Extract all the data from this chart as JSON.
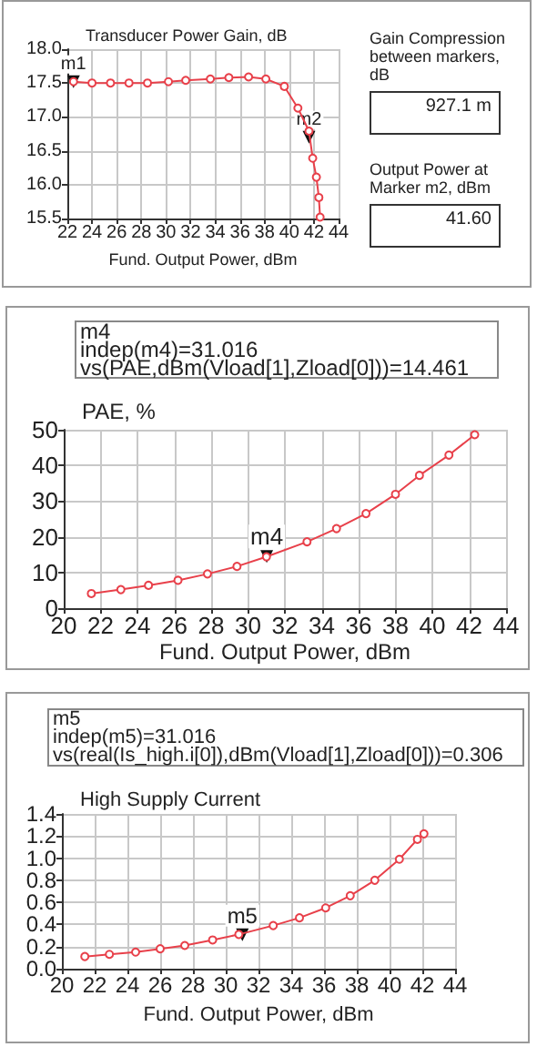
{
  "chart_data": [
    {
      "type": "line",
      "title": "Transducer Power Gain, dB",
      "xlabel": "Fund. Output Power, dBm",
      "color": "#e8404a",
      "marker": "circle",
      "grid": true,
      "x": [
        22.5,
        24.0,
        25.5,
        27.0,
        28.5,
        30.2,
        31.6,
        33.6,
        35.1,
        36.7,
        38.1,
        39.6,
        40.7,
        41.6,
        41.9,
        42.2,
        42.4,
        42.5
      ],
      "values": [
        17.52,
        17.5,
        17.5,
        17.5,
        17.5,
        17.52,
        17.54,
        17.56,
        17.58,
        17.59,
        17.56,
        17.45,
        17.13,
        16.79,
        16.39,
        16.11,
        15.81,
        15.52
      ],
      "xlim": [
        22,
        44
      ],
      "xticks": [
        22,
        24,
        26,
        28,
        30,
        32,
        34,
        36,
        38,
        40,
        42,
        44
      ],
      "ylim": [
        15.5,
        18
      ],
      "yticks": [
        {
          "value": 15.5,
          "label": "15.5"
        },
        {
          "value": 16,
          "label": "16.0"
        },
        {
          "value": 16.5,
          "label": "16.5"
        },
        {
          "value": 17,
          "label": "17.0"
        },
        {
          "value": 17.5,
          "label": "17.5"
        },
        {
          "value": 18,
          "label": "18.0"
        }
      ],
      "annotations": [
        {
          "text": "m1",
          "x": 22.5,
          "y": 17.52
        },
        {
          "text": "m2",
          "x": 41.6,
          "y": 16.7
        }
      ]
    },
    {
      "type": "other",
      "annotations": [
        "Gain Compression between markers, dB",
        "927.1 m",
        "Output Power at Marker m2, dBm",
        "41.60"
      ]
    },
    {
      "type": "line",
      "title": "PAE, %",
      "xlabel": "Fund. Output Power, dBm",
      "color": "#e8404a",
      "marker": "circle",
      "grid": true,
      "x": [
        21.5,
        23.1,
        24.6,
        26.2,
        27.8,
        29.4,
        31.0,
        33.2,
        34.8,
        36.4,
        38.0,
        39.3,
        40.9,
        42.3
      ],
      "values": [
        4.1,
        5.2,
        6.4,
        7.8,
        9.6,
        11.7,
        14.4,
        18.6,
        22.3,
        26.5,
        31.9,
        37.2,
        42.9,
        48.6
      ],
      "xlim": [
        20,
        44
      ],
      "xticks": [
        20,
        22,
        24,
        26,
        28,
        30,
        32,
        34,
        36,
        38,
        40,
        42,
        44
      ],
      "ylim": [
        0,
        50
      ],
      "yticks": [
        0,
        10,
        20,
        30,
        40,
        50
      ],
      "annotations": [
        "m4",
        "indep(m4)=31.016",
        "vs(PAE,dBm(Vload[1],Zload[0]))=14.461",
        {
          "text": "m4",
          "x": 31.016,
          "y": 14.461
        }
      ]
    },
    {
      "type": "line",
      "title": "High Supply Current",
      "xlabel": "Fund. Output Power, dBm",
      "color": "#e8404a",
      "marker": "circle",
      "grid": true,
      "x": [
        21.4,
        22.9,
        24.5,
        26.0,
        27.5,
        29.2,
        30.8,
        32.9,
        34.5,
        36.1,
        37.6,
        39.1,
        40.6,
        41.7,
        42.1
      ],
      "values": [
        0.11,
        0.13,
        0.15,
        0.18,
        0.21,
        0.26,
        0.31,
        0.39,
        0.46,
        0.55,
        0.66,
        0.8,
        0.99,
        1.17,
        1.22
      ],
      "xlim": [
        20,
        44
      ],
      "xticks": [
        20,
        22,
        24,
        26,
        28,
        30,
        32,
        34,
        36,
        38,
        40,
        42,
        44
      ],
      "ylim": [
        0,
        1.4
      ],
      "yticks": [
        {
          "value": 0,
          "label": "0.0"
        },
        {
          "value": 0.2,
          "label": "0.2"
        },
        {
          "value": 0.4,
          "label": "0.4"
        },
        {
          "value": 0.6,
          "label": "0.6"
        },
        {
          "value": 0.8,
          "label": "0.8"
        },
        {
          "value": 1,
          "label": "1.0"
        },
        {
          "value": 1.2,
          "label": "1.2"
        },
        {
          "value": 1.4,
          "label": "1.4"
        }
      ],
      "annotations": [
        "m5",
        "indep(m5)=31.016",
        "vs(real(Is_high.i[0]),dBm(Vload[1],Zload[0]))=0.306",
        {
          "text": "m5",
          "x": 31.016,
          "y": 0.306
        }
      ]
    }
  ]
}
